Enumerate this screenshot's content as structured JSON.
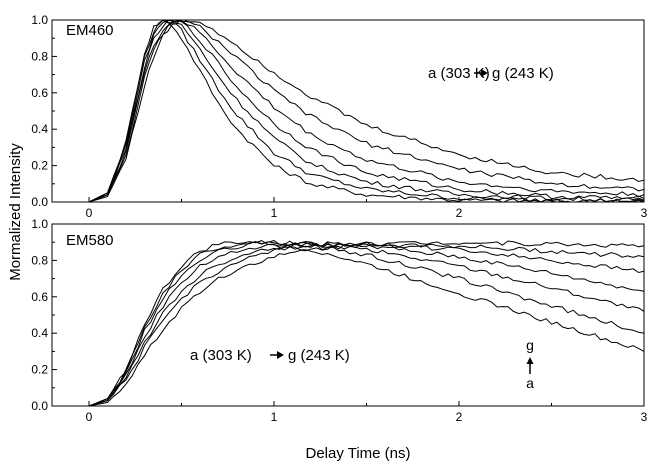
{
  "chart_data": [
    {
      "type": "line",
      "title": "EM460",
      "xlabel": "Delay Time (ns)",
      "ylabel": "Mormalized Intensity",
      "xlim": [
        -0.2,
        3.0
      ],
      "ylim": [
        0.0,
        1.0
      ],
      "xticks": [
        "0",
        "1",
        "2",
        "3"
      ],
      "yticks": [
        "0.0",
        "0.2",
        "0.4",
        "0.6",
        "0.8",
        "1.0"
      ],
      "annotation": "a (303 K) → g (243 K)",
      "grid": false,
      "x": [
        0.0,
        0.1,
        0.2,
        0.3,
        0.35,
        0.4,
        0.45,
        0.5,
        0.6,
        0.7,
        0.8,
        1.0,
        1.2,
        1.5,
        2.0,
        2.5,
        3.0
      ],
      "series": [
        {
          "values": [
            0.0,
            0.05,
            0.33,
            0.82,
            0.96,
            1.0,
            0.97,
            0.9,
            0.72,
            0.54,
            0.4,
            0.2,
            0.1,
            0.04,
            0.01,
            0.005,
            0.0
          ]
        },
        {
          "values": [
            0.0,
            0.05,
            0.32,
            0.8,
            0.94,
            1.0,
            0.99,
            0.94,
            0.78,
            0.62,
            0.48,
            0.27,
            0.15,
            0.07,
            0.02,
            0.01,
            0.005
          ]
        },
        {
          "values": [
            0.0,
            0.05,
            0.31,
            0.77,
            0.92,
            0.99,
            1.0,
            0.97,
            0.84,
            0.69,
            0.56,
            0.35,
            0.21,
            0.11,
            0.04,
            0.02,
            0.01
          ]
        },
        {
          "values": [
            0.0,
            0.04,
            0.29,
            0.74,
            0.89,
            0.97,
            1.0,
            0.99,
            0.89,
            0.76,
            0.63,
            0.43,
            0.29,
            0.16,
            0.07,
            0.03,
            0.02
          ]
        },
        {
          "values": [
            0.0,
            0.04,
            0.28,
            0.71,
            0.86,
            0.95,
            0.99,
            1.0,
            0.93,
            0.82,
            0.71,
            0.52,
            0.37,
            0.23,
            0.11,
            0.06,
            0.04
          ]
        },
        {
          "values": [
            0.0,
            0.04,
            0.26,
            0.68,
            0.83,
            0.93,
            0.98,
            1.0,
            0.96,
            0.88,
            0.79,
            0.61,
            0.47,
            0.32,
            0.18,
            0.1,
            0.07
          ]
        },
        {
          "values": [
            0.0,
            0.03,
            0.24,
            0.64,
            0.8,
            0.91,
            0.97,
            1.0,
            0.99,
            0.93,
            0.86,
            0.71,
            0.58,
            0.42,
            0.26,
            0.16,
            0.12
          ]
        }
      ]
    },
    {
      "type": "line",
      "title": "EM580",
      "xlabel": "Delay Time (ns)",
      "ylabel": "Mormalized Intensity",
      "xlim": [
        -0.2,
        3.0
      ],
      "ylim": [
        0.0,
        1.0
      ],
      "xticks": [
        "0",
        "1",
        "2",
        "3"
      ],
      "yticks": [
        "0.0",
        "0.2",
        "0.4",
        "0.6",
        "0.8",
        "1.0"
      ],
      "annotation": "a (303 K) → g (243 K)",
      "annotation2_top": "g",
      "annotation2_bottom": "a",
      "grid": false,
      "x": [
        0.0,
        0.1,
        0.2,
        0.3,
        0.4,
        0.5,
        0.6,
        0.7,
        0.8,
        0.9,
        1.0,
        1.2,
        1.5,
        2.0,
        2.5,
        3.0
      ],
      "series": [
        {
          "values": [
            0.0,
            0.04,
            0.2,
            0.45,
            0.64,
            0.77,
            0.85,
            0.89,
            0.9,
            0.9,
            0.89,
            0.86,
            0.78,
            0.62,
            0.46,
            0.3
          ]
        },
        {
          "values": [
            0.0,
            0.04,
            0.19,
            0.43,
            0.62,
            0.75,
            0.83,
            0.87,
            0.89,
            0.9,
            0.9,
            0.88,
            0.83,
            0.7,
            0.55,
            0.4
          ]
        },
        {
          "values": [
            0.0,
            0.04,
            0.18,
            0.41,
            0.59,
            0.72,
            0.8,
            0.85,
            0.87,
            0.89,
            0.9,
            0.89,
            0.86,
            0.77,
            0.65,
            0.52
          ]
        },
        {
          "values": [
            0.0,
            0.03,
            0.17,
            0.38,
            0.55,
            0.68,
            0.77,
            0.82,
            0.85,
            0.87,
            0.88,
            0.89,
            0.88,
            0.82,
            0.73,
            0.63
          ]
        },
        {
          "values": [
            0.0,
            0.03,
            0.15,
            0.35,
            0.51,
            0.63,
            0.72,
            0.78,
            0.82,
            0.85,
            0.87,
            0.89,
            0.89,
            0.86,
            0.8,
            0.74
          ]
        },
        {
          "values": [
            0.0,
            0.03,
            0.14,
            0.32,
            0.47,
            0.59,
            0.68,
            0.74,
            0.79,
            0.82,
            0.85,
            0.88,
            0.89,
            0.88,
            0.85,
            0.82
          ]
        },
        {
          "values": [
            0.0,
            0.02,
            0.12,
            0.28,
            0.42,
            0.54,
            0.63,
            0.7,
            0.75,
            0.79,
            0.82,
            0.86,
            0.89,
            0.9,
            0.89,
            0.88
          ]
        }
      ]
    }
  ]
}
